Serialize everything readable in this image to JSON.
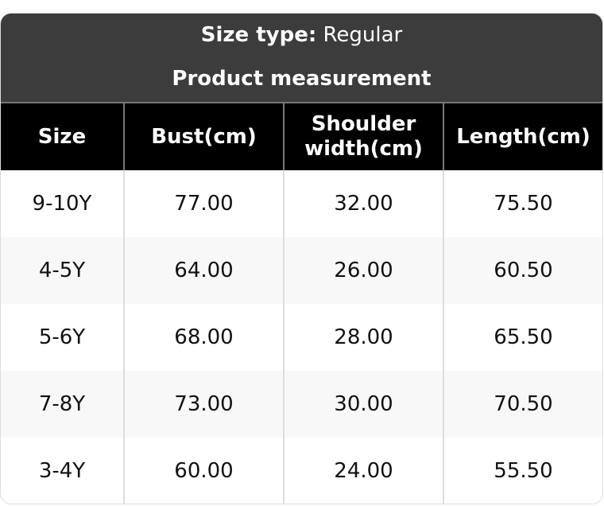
{
  "header": {
    "size_type_label": "Size type:",
    "size_type_value": "Regular",
    "title": "Product measurement"
  },
  "columns": [
    "Size",
    "Bust(cm)",
    "Shoulder width(cm)",
    "Length(cm)"
  ],
  "rows": [
    [
      "9-10Y",
      "77.00",
      "32.00",
      "75.50"
    ],
    [
      "4-5Y",
      "64.00",
      "26.00",
      "60.50"
    ],
    [
      "5-6Y",
      "68.00",
      "28.00",
      "65.50"
    ],
    [
      "7-8Y",
      "73.00",
      "30.00",
      "70.50"
    ],
    [
      "3-4Y",
      "60.00",
      "24.00",
      "55.50"
    ]
  ]
}
